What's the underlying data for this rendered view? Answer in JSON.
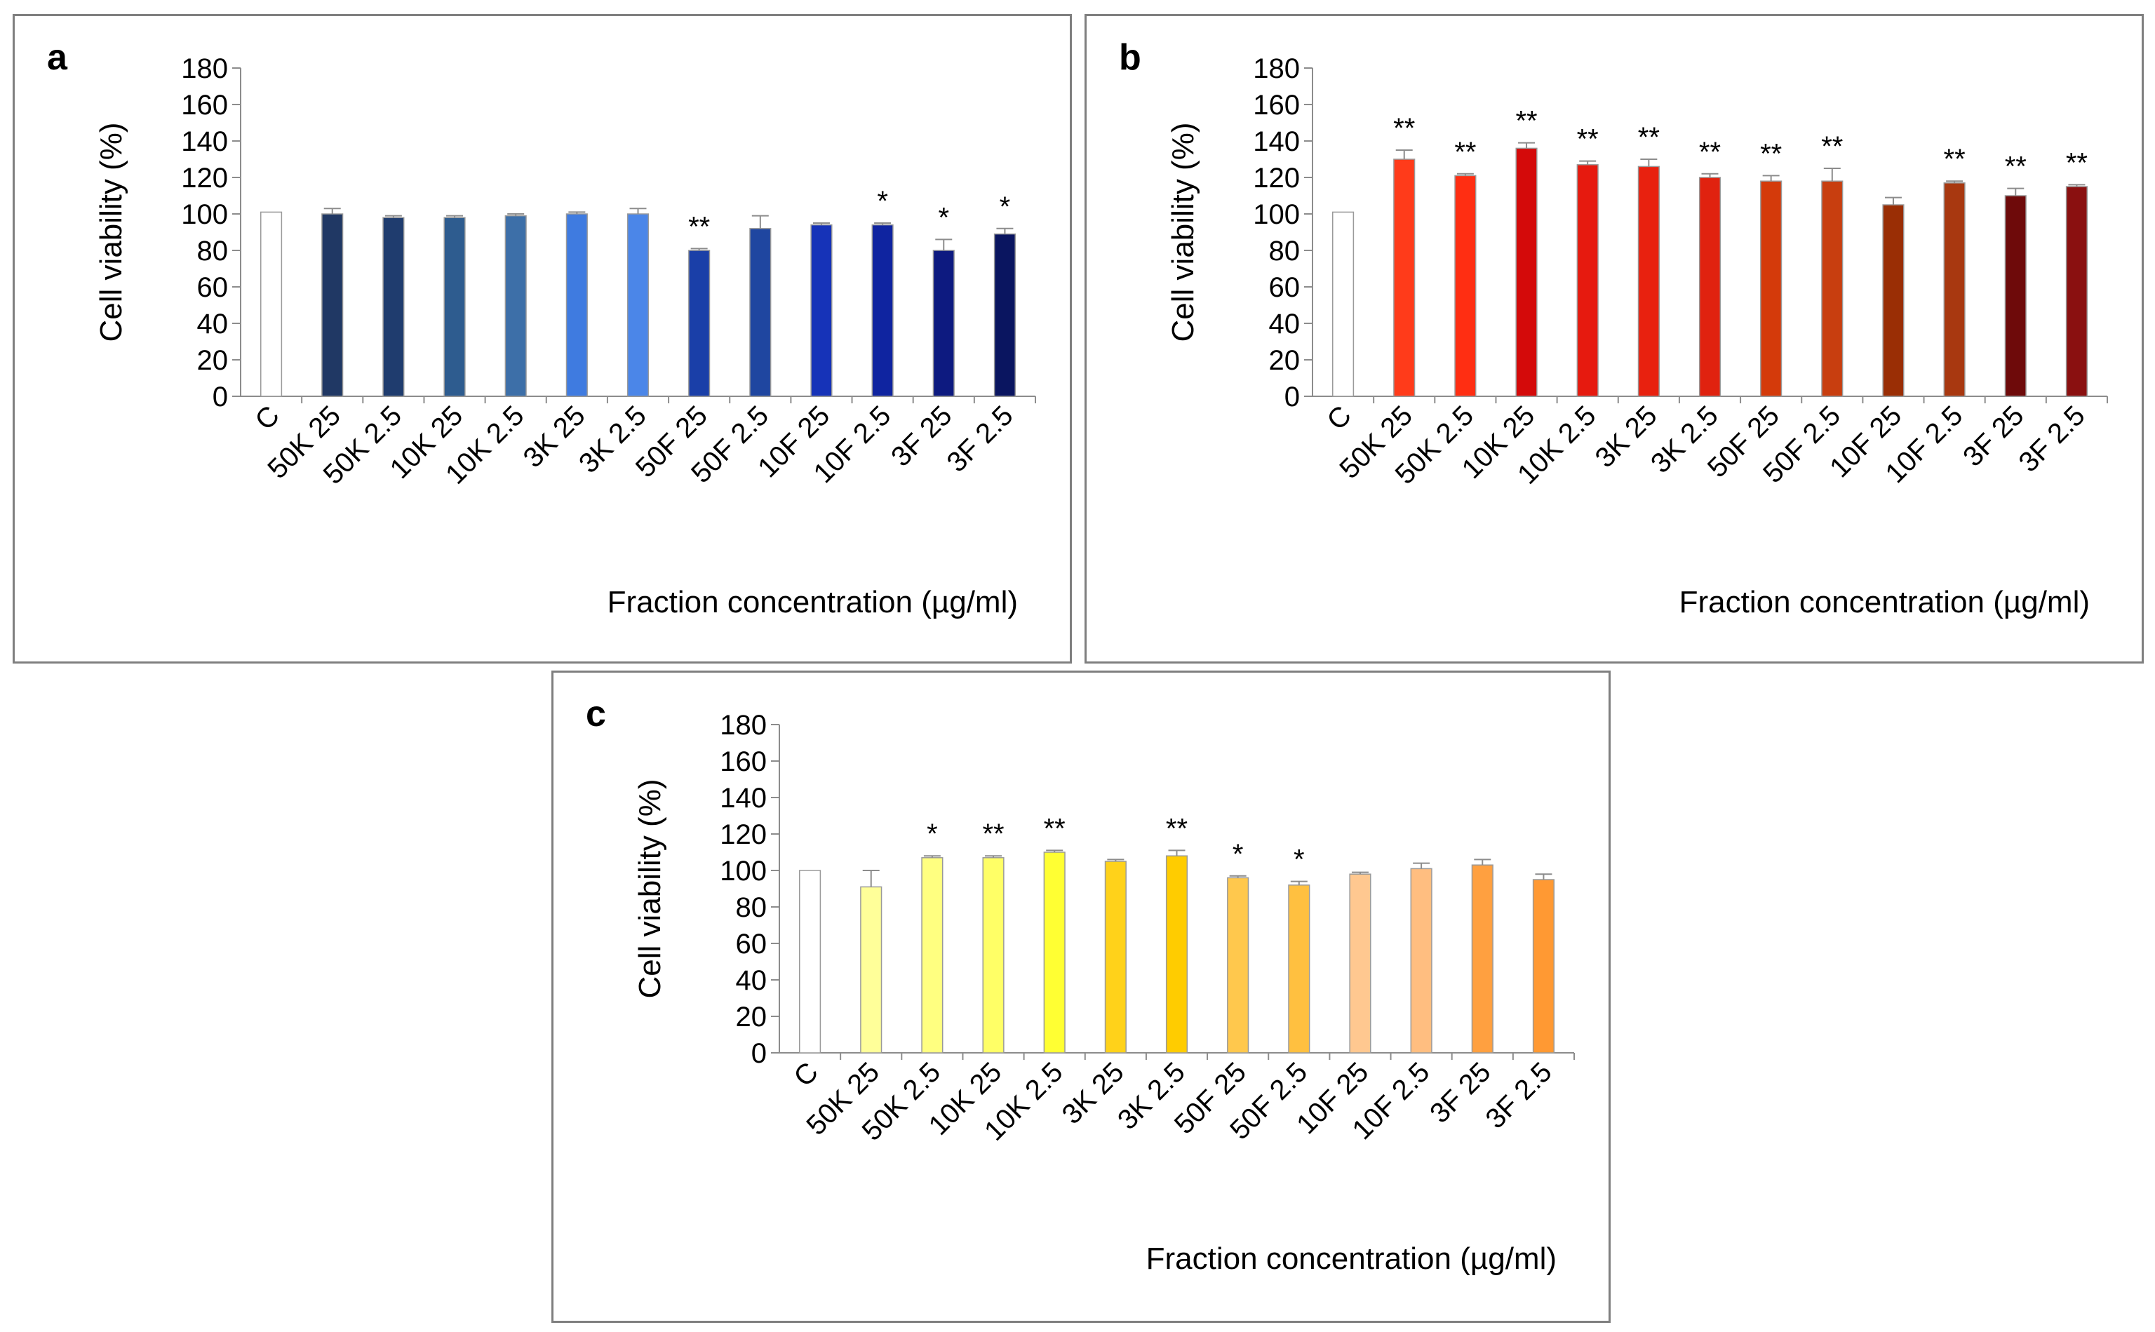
{
  "chart_data": [
    {
      "type": "bar",
      "panel_label": "a",
      "title": "",
      "xlabel": "Fraction concentration (µg/ml)",
      "ylabel": "Cell viability (%)",
      "ylim": [
        0,
        180
      ],
      "yticks": [
        0,
        20,
        40,
        60,
        80,
        100,
        120,
        140,
        160,
        180
      ],
      "categories": [
        "C",
        "50K 25",
        "50K 2.5",
        "10K 25",
        "10K 2.5",
        "3K 25",
        "3K 2.5",
        "50F 25",
        "50F 2.5",
        "10F 25",
        "10F 2.5",
        "3F 25",
        "3F 2.5"
      ],
      "values": [
        101,
        100,
        98,
        98,
        99,
        100,
        100,
        80,
        92,
        94,
        94,
        80,
        89
      ],
      "errors": [
        0,
        3,
        1,
        1,
        1,
        1,
        3,
        1,
        7,
        1,
        1,
        6,
        3
      ],
      "significance": [
        "",
        "",
        "",
        "",
        "",
        "",
        "",
        "**",
        "",
        "",
        "*",
        "*",
        "*"
      ],
      "colors": [
        "#ffffff",
        "#203864",
        "#1f3c6e",
        "#2e5c8f",
        "#3d6fa8",
        "#3f7be0",
        "#4b86e8",
        "#1a3fa8",
        "#1f46a0",
        "#1633b8",
        "#0f24a0",
        "#0d1a80",
        "#0a1560"
      ]
    },
    {
      "type": "bar",
      "panel_label": "b",
      "title": "",
      "xlabel": "Fraction concentration (µg/ml)",
      "ylabel": "Cell viability (%)",
      "ylim": [
        0,
        180
      ],
      "yticks": [
        0,
        20,
        40,
        60,
        80,
        100,
        120,
        140,
        160,
        180
      ],
      "categories": [
        "C",
        "50K 25",
        "50K 2.5",
        "10K 25",
        "10K 2.5",
        "3K 25",
        "3K 2.5",
        "50F 25",
        "50F 2.5",
        "10F 25",
        "10F 2.5",
        "3F 25",
        "3F 2.5"
      ],
      "values": [
        101,
        130,
        121,
        136,
        127,
        126,
        120,
        118,
        118,
        105,
        117,
        110,
        115
      ],
      "errors": [
        0,
        5,
        1,
        3,
        2,
        4,
        2,
        3,
        7,
        4,
        1,
        4,
        1
      ],
      "significance": [
        "",
        "**",
        "**",
        "**",
        "**",
        "**",
        "**",
        "**",
        "**",
        "",
        "**",
        "**",
        "**"
      ],
      "colors": [
        "#ffffff",
        "#ff3b1a",
        "#ff2e12",
        "#d40a0a",
        "#e61a0f",
        "#e8210f",
        "#e0220f",
        "#d43a0a",
        "#c83e0f",
        "#9a2e05",
        "#a83810",
        "#6e0a0a",
        "#8a1010"
      ]
    },
    {
      "type": "bar",
      "panel_label": "c",
      "title": "",
      "xlabel": "Fraction concentration (µg/ml)",
      "ylabel": "Cell viability (%)",
      "ylim": [
        0,
        180
      ],
      "yticks": [
        0,
        20,
        40,
        60,
        80,
        100,
        120,
        140,
        160,
        180
      ],
      "categories": [
        "C",
        "50K 25",
        "50K 2.5",
        "10K 25",
        "10K 2.5",
        "3K 25",
        "3K 2.5",
        "50F 25",
        "50F 2.5",
        "10F 25",
        "10F 2.5",
        "3F 25",
        "3F 2.5"
      ],
      "values": [
        100,
        91,
        107,
        107,
        110,
        105,
        108,
        96,
        92,
        98,
        101,
        103,
        95
      ],
      "errors": [
        0,
        9,
        1,
        1,
        1,
        1,
        3,
        1,
        2,
        1,
        3,
        3,
        3
      ],
      "significance": [
        "",
        "",
        "*",
        "**",
        "**",
        "",
        "**",
        "*",
        "*",
        "",
        "",
        "",
        ""
      ],
      "colors": [
        "#ffffff",
        "#ffff99",
        "#ffff80",
        "#ffff66",
        "#ffff33",
        "#ffd21a",
        "#ffcc00",
        "#ffc84d",
        "#ffc040",
        "#ffc890",
        "#ffbe80",
        "#ffa040",
        "#ff9933"
      ]
    }
  ]
}
